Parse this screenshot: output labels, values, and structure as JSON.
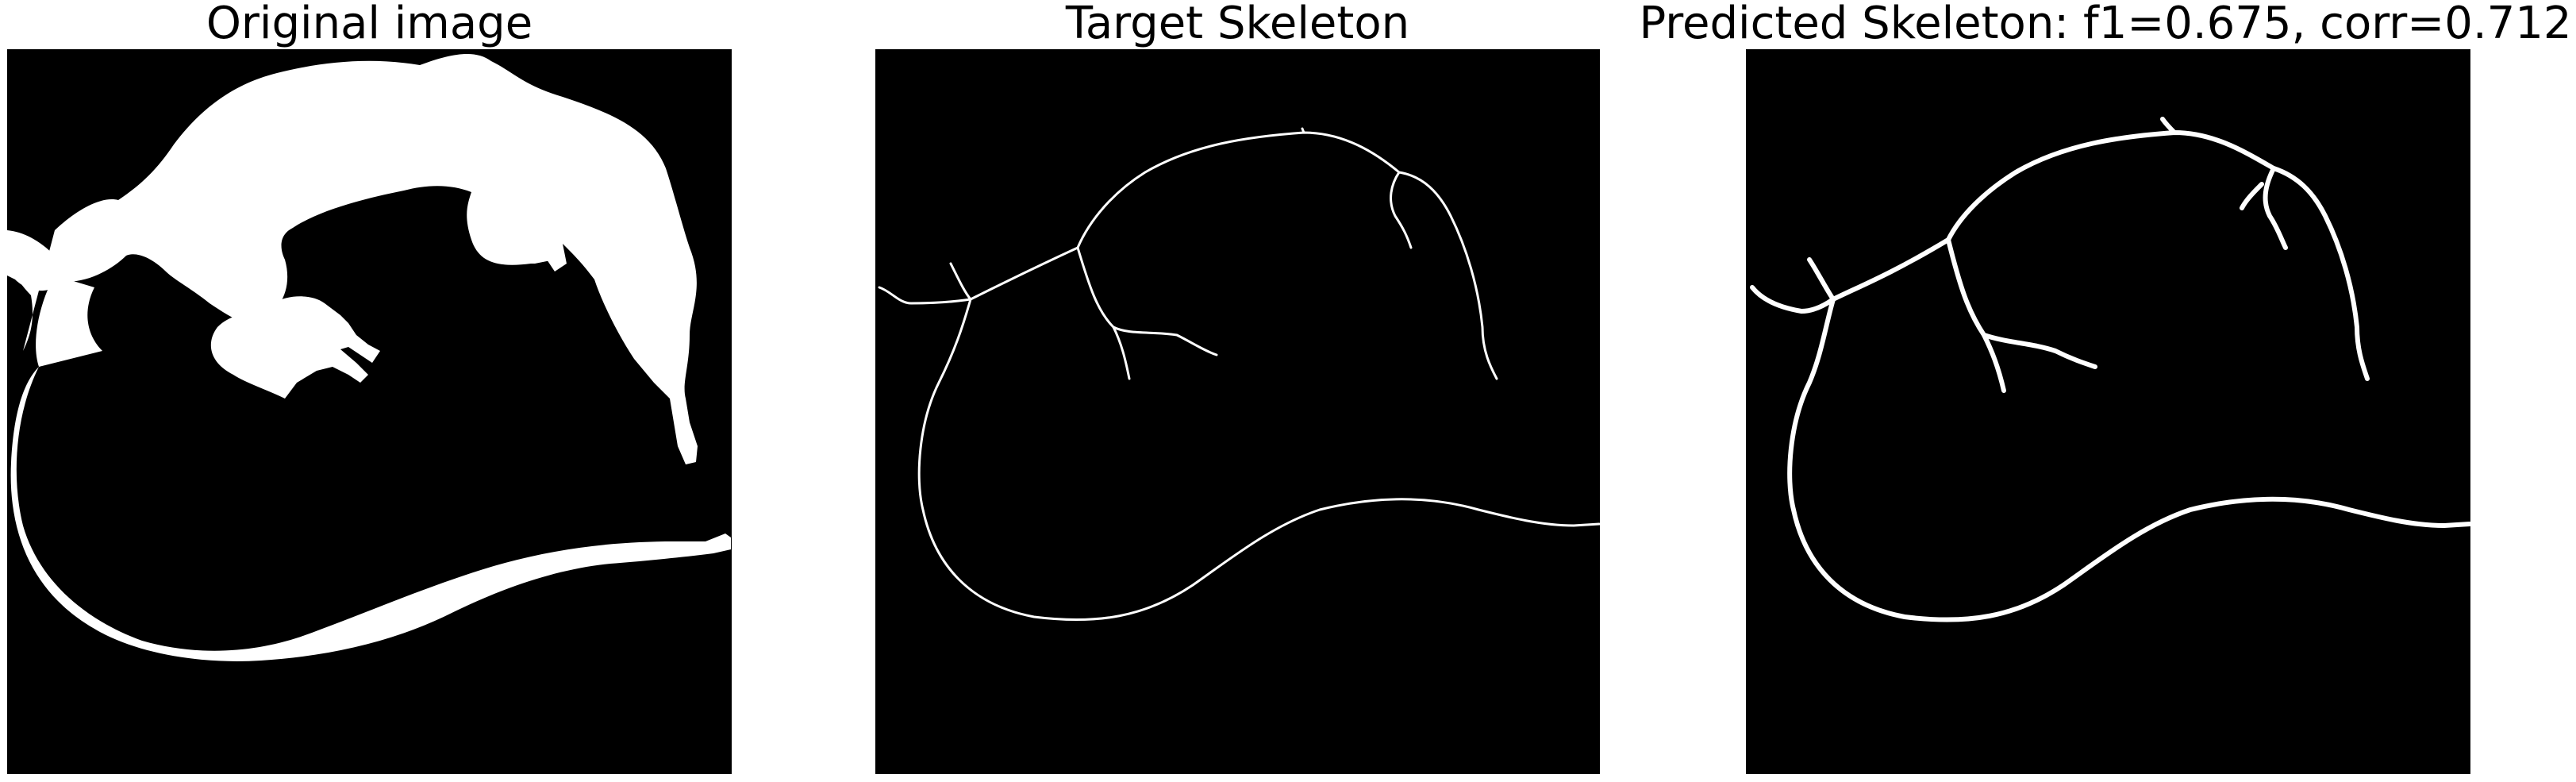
{
  "panels": [
    {
      "title": "Original image"
    },
    {
      "title": "Target Skeleton"
    },
    {
      "title": "Predicted Skeleton: f1=0.675, corr=0.712"
    }
  ],
  "colors": {
    "background": "#000000",
    "foreground": "#ffffff",
    "title": "#000000"
  }
}
